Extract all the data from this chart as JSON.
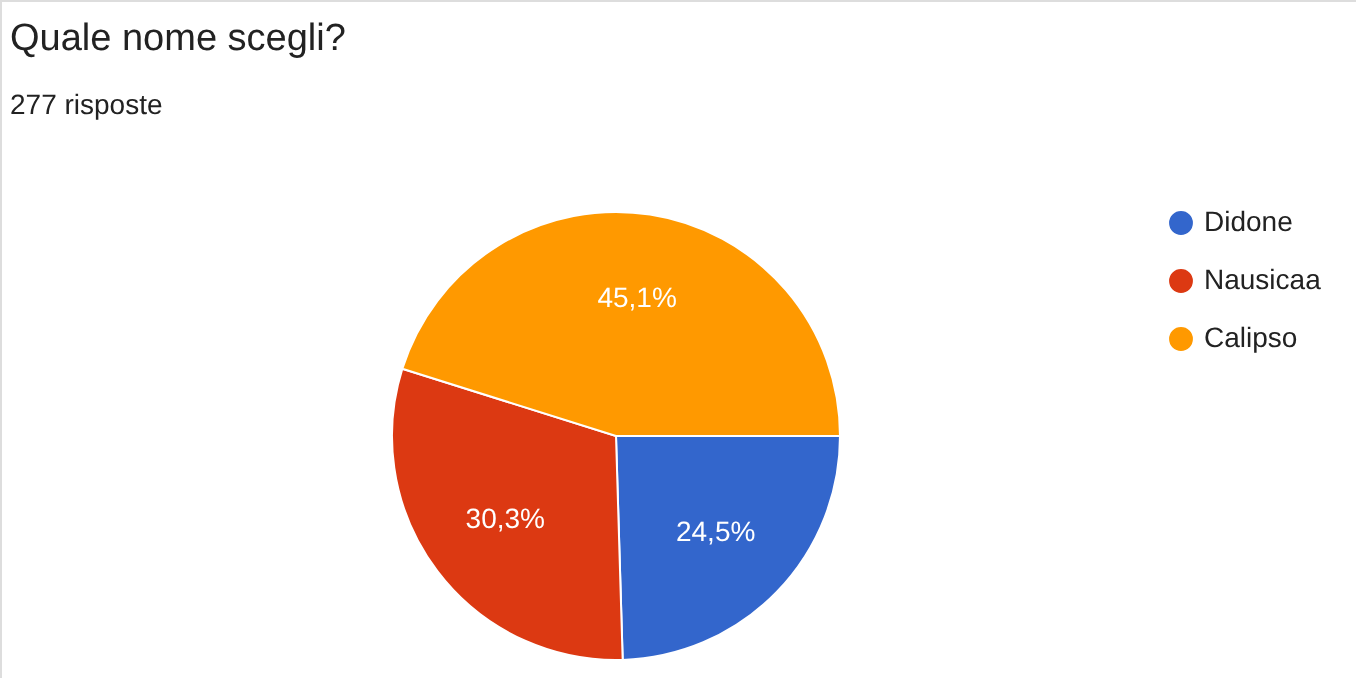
{
  "chart_data": {
    "type": "pie",
    "title": "Quale nome scegli?",
    "subtitle": "277 risposte",
    "categories": [
      "Didone",
      "Nausicaa",
      "Calipso"
    ],
    "values": [
      24.5,
      30.3,
      45.1
    ],
    "value_labels": [
      "24,5%",
      "30,3%",
      "45,1%"
    ],
    "colors": [
      "#3366cc",
      "#dc3912",
      "#ff9900"
    ],
    "legend": "top right"
  }
}
